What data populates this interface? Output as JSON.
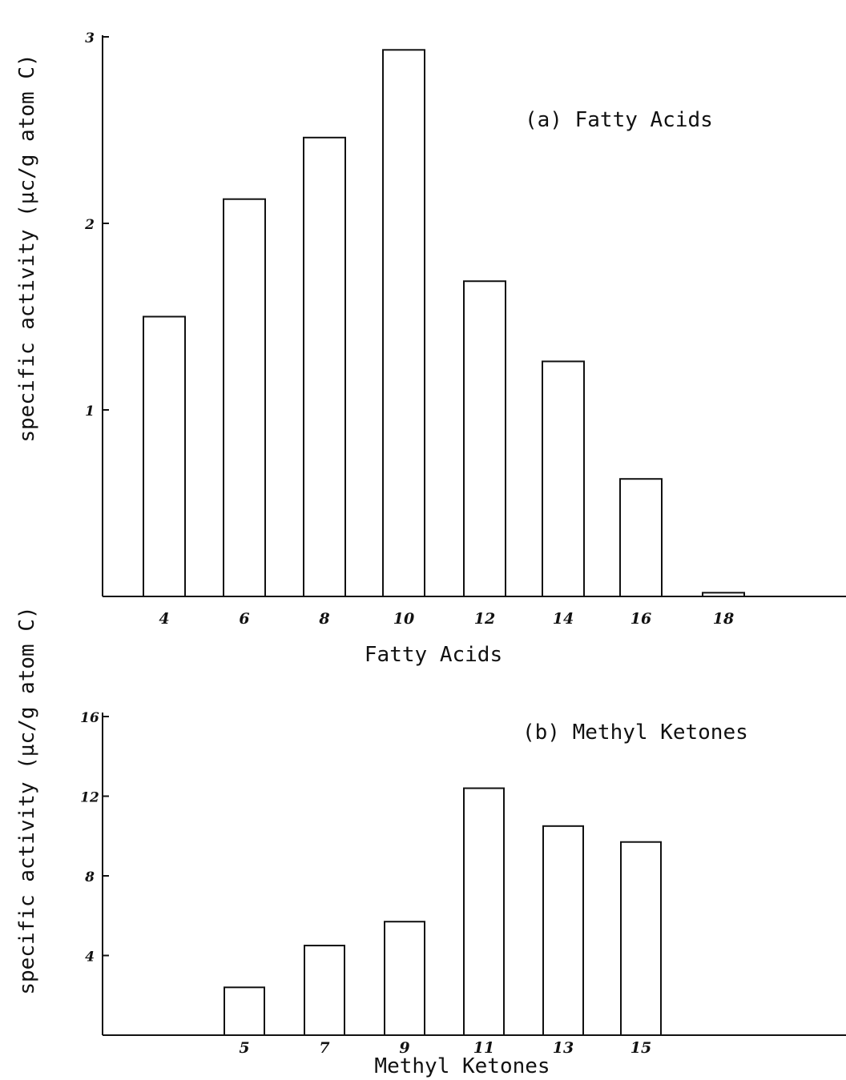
{
  "chart_data": [
    {
      "type": "bar",
      "title": "(a) Fatty Acids",
      "xlabel": "Fatty Acids",
      "ylabel": "specific activity (µc/g atom C)",
      "categories": [
        "4",
        "6",
        "8",
        "10",
        "12",
        "14",
        "16",
        "18"
      ],
      "values": [
        1.5,
        2.13,
        2.46,
        2.93,
        1.69,
        1.26,
        0.63,
        0.02
      ],
      "y_ticks": [
        "1",
        "2",
        "3"
      ],
      "ylim": [
        0,
        3
      ],
      "grid": false
    },
    {
      "type": "bar",
      "title": "(b) Methyl Ketones",
      "xlabel": "Methyl Ketones",
      "ylabel": "specific activity (µc/g atom C)",
      "categories": [
        "5",
        "7",
        "9",
        "11",
        "13",
        "15"
      ],
      "values": [
        2.4,
        4.5,
        5.7,
        12.4,
        10.5,
        9.7
      ],
      "y_ticks": [
        "4",
        "8",
        "12",
        "16"
      ],
      "ylim": [
        0,
        16
      ],
      "grid": false
    }
  ]
}
